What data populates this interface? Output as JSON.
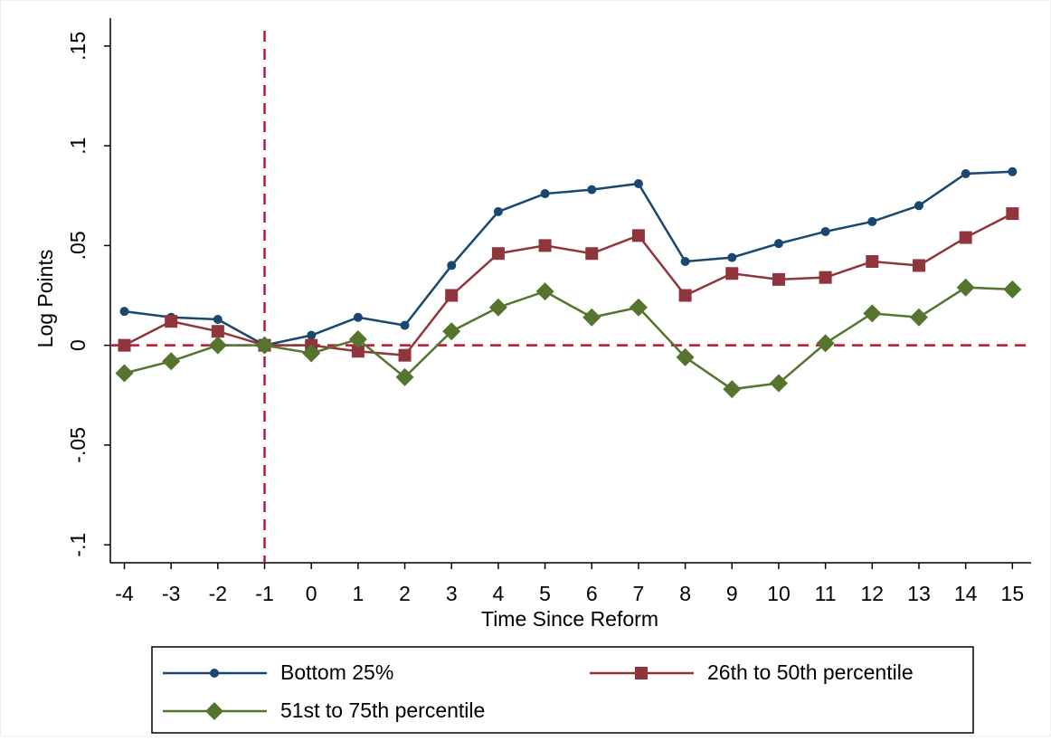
{
  "chart_data": {
    "type": "line",
    "x_label": "Time Since Reform",
    "y_label": "Log Points",
    "x": [
      -4,
      -3,
      -2,
      -1,
      0,
      1,
      2,
      3,
      4,
      5,
      6,
      7,
      8,
      9,
      10,
      11,
      12,
      13,
      14,
      15
    ],
    "series": [
      {
        "name": "Bottom 25%",
        "color": "#1a476f",
        "marker": "circle",
        "values": [
          0.017,
          0.014,
          0.013,
          0,
          0.005,
          0.014,
          0.01,
          0.04,
          0.067,
          0.076,
          0.078,
          0.081,
          0.042,
          0.044,
          0.051,
          0.057,
          0.062,
          0.07,
          0.086,
          0.087
        ]
      },
      {
        "name": "26th to 50th percentile",
        "color": "#90353b",
        "marker": "square",
        "values": [
          0.0,
          0.012,
          0.007,
          0,
          0,
          -0.003,
          -0.005,
          0.025,
          0.046,
          0.05,
          0.046,
          0.055,
          0.025,
          0.036,
          0.033,
          0.034,
          0.042,
          0.04,
          0.054,
          0.066
        ]
      },
      {
        "name": "51st to 75th percentile",
        "color": "#55752f",
        "marker": "diamond",
        "values": [
          -0.014,
          -0.008,
          0,
          0,
          -0.004,
          0.003,
          -0.016,
          0.007,
          0.019,
          0.027,
          0.014,
          0.019,
          -0.006,
          -0.022,
          -0.019,
          0.001,
          0.016,
          0.014,
          0.029,
          0.028
        ]
      }
    ],
    "xlim": [
      -4.3,
      15.4
    ],
    "ylim": [
      -0.109,
      0.164
    ],
    "xticks": [
      -4,
      -3,
      -2,
      -1,
      0,
      1,
      2,
      3,
      4,
      5,
      6,
      7,
      8,
      9,
      10,
      11,
      12,
      13,
      14,
      15
    ],
    "yticks": [
      {
        "value": -0.1,
        "label": "-.1"
      },
      {
        "value": -0.05,
        "label": "-.05"
      },
      0,
      {
        "value": 0.05,
        "label": ".05"
      },
      {
        "value": 0.1,
        "label": ".1"
      },
      {
        "value": 0.15,
        "label": ".15"
      }
    ],
    "hline": 0,
    "vline": -1,
    "refline_color": "#c8102e",
    "legend": "bottom"
  }
}
